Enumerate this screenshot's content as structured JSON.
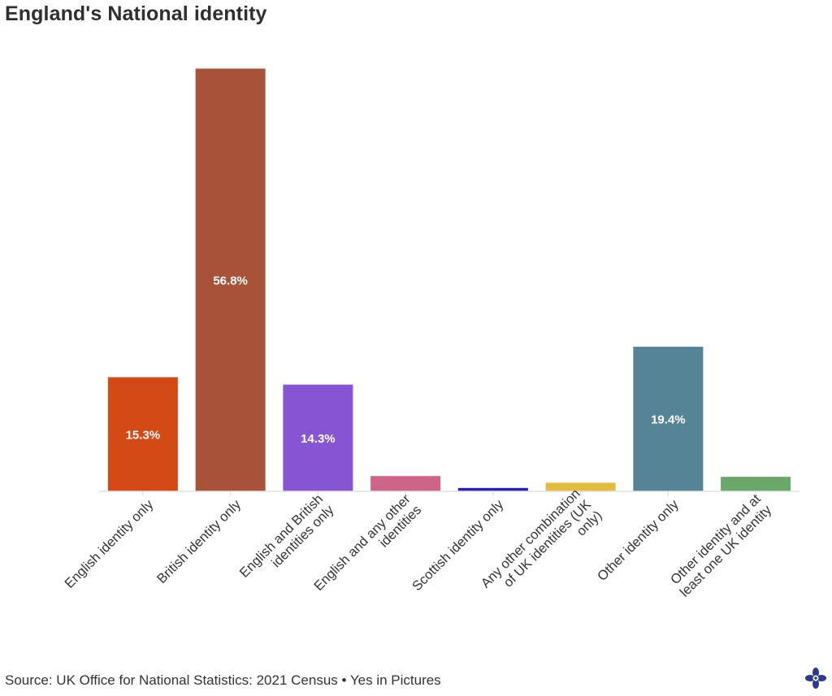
{
  "title": "England's National identity",
  "footer": {
    "source": "Source: UK Office for National Statistics: 2021 Census • Yes in Pictures",
    "logo_icon": "flower-logo-icon"
  },
  "chart_data": {
    "type": "bar",
    "title": "England's National identity",
    "xlabel": "",
    "ylabel": "",
    "ylim": [
      0,
      57
    ],
    "grid": false,
    "legend": "none",
    "categories": [
      "English identity only",
      "British identity only",
      "English and British identities only",
      "English and any other identities",
      "Scottish identity only",
      "Any other combination of UK identities (UK only)",
      "Other identity only",
      "Other identity and at least one UK identity"
    ],
    "category_lines": [
      [
        "English identity only"
      ],
      [
        "British identity only"
      ],
      [
        "English and British",
        "identities only"
      ],
      [
        "English and any other",
        "identities"
      ],
      [
        "Scottish identity only"
      ],
      [
        "Any other combination",
        "of UK identities (UK",
        "only)"
      ],
      [
        "Other identity only"
      ],
      [
        "Other identity and at",
        "least one UK identity"
      ]
    ],
    "values": [
      15.3,
      56.8,
      14.3,
      2.0,
      0.4,
      1.1,
      19.4,
      1.9
    ],
    "data_labels": [
      "15.3%",
      "56.8%",
      "14.3%",
      "",
      "",
      "",
      "19.4%",
      ""
    ],
    "colors": [
      "#d44a16",
      "#a8523a",
      "#8755d4",
      "#cf6489",
      "#2a1fc4",
      "#e2bc3c",
      "#548495",
      "#6aa86a"
    ]
  }
}
